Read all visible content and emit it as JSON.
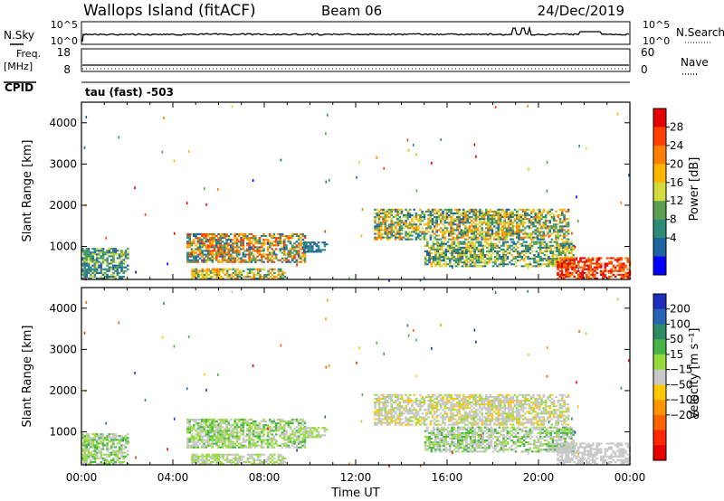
{
  "header": {
    "title": "Wallops Island (fitACF)",
    "beam": "Beam 06",
    "date": "24/Dec/2019"
  },
  "top_panels": {
    "nsky_label": "N.Sky",
    "nsky_ticks": [
      "10^5",
      "10^0"
    ],
    "nsearch_label": "N.Search",
    "nsearch_ticks": [
      "10^5",
      "10^0"
    ],
    "freq_label": "Freq.",
    "freq_unit": "[MHz]",
    "freq_ticks": [
      "18",
      "8"
    ],
    "nave_label": "Nave",
    "nave_ticks": [
      "60",
      "0"
    ],
    "cpid_label": "CPID",
    "cpid_text": "tau (fast) -503"
  },
  "chart_data": [
    {
      "type": "heatmap",
      "name": "power",
      "ylabel": "Slant Range [km]",
      "xlim": [
        0,
        24
      ],
      "ylim": [
        200,
        4500
      ],
      "yticks": [
        1000,
        2000,
        3000,
        4000
      ],
      "colorbar_label": "Power [dB]",
      "colorbar_ticks": [
        "28",
        "24",
        "20",
        "16",
        "12",
        "8",
        "4"
      ],
      "colorbar_colors": [
        "#e60000",
        "#ff4000",
        "#ff8000",
        "#ffb400",
        "#d2dc3c",
        "#5aa050",
        "#2d8c78",
        "#1e64a0",
        "#0000ff"
      ],
      "regions": [
        {
          "t0": 4.6,
          "t1": 9.8,
          "r0": 600,
          "r1": 1300,
          "palette": [
            2,
            1,
            3,
            5,
            6,
            7
          ]
        },
        {
          "t0": 4.8,
          "t1": 8.9,
          "r0": 200,
          "r1": 450,
          "palette": [
            2,
            3,
            4,
            6
          ]
        },
        {
          "t0": 9.7,
          "t1": 10.7,
          "r0": 850,
          "r1": 1100,
          "palette": [
            6,
            7
          ]
        },
        {
          "t0": 12.8,
          "t1": 21.3,
          "r0": 1150,
          "r1": 1900,
          "palette": [
            3,
            2,
            4,
            5,
            6,
            7
          ]
        },
        {
          "t0": 15.0,
          "t1": 21.5,
          "r0": 500,
          "r1": 1100,
          "palette": [
            4,
            5,
            6,
            7,
            3
          ]
        },
        {
          "t0": 20.8,
          "t1": 24.0,
          "r0": 200,
          "r1": 700,
          "palette": [
            0,
            1,
            2
          ]
        },
        {
          "t0": 0.0,
          "t1": 2.0,
          "r0": 200,
          "r1": 950,
          "palette": [
            6,
            7,
            5,
            4
          ]
        }
      ]
    },
    {
      "type": "heatmap",
      "name": "velocity",
      "xlabel": "Time UT",
      "ylabel": "Slant Range [km]",
      "xlim": [
        0,
        24
      ],
      "ylim": [
        200,
        4500
      ],
      "xticks": [
        "00:00",
        "04:00",
        "08:00",
        "12:00",
        "16:00",
        "20:00",
        "00:00"
      ],
      "yticks": [
        1000,
        2000,
        3000,
        4000
      ],
      "colorbar_label": "Velocity [m s⁻¹]",
      "colorbar_ticks": [
        "200",
        "100",
        "50",
        "15",
        "−15",
        "−50",
        "−100",
        "−200"
      ],
      "colorbar_colors": [
        "#1e2dbe",
        "#2864b4",
        "#2d8c64",
        "#46b446",
        "#96dc3c",
        "#c8c8c8",
        "#ffc800",
        "#ff9600",
        "#ff6400",
        "#ff2800",
        "#e60000"
      ],
      "regions": [
        {
          "t0": 4.6,
          "t1": 9.8,
          "r0": 600,
          "r1": 1300,
          "palette": [
            4,
            3,
            4,
            5,
            5
          ]
        },
        {
          "t0": 4.8,
          "t1": 8.9,
          "r0": 200,
          "r1": 450,
          "palette": [
            4,
            5
          ]
        },
        {
          "t0": 9.7,
          "t1": 10.7,
          "r0": 850,
          "r1": 1100,
          "palette": [
            5,
            4
          ]
        },
        {
          "t0": 12.8,
          "t1": 21.3,
          "r0": 1150,
          "r1": 1900,
          "palette": [
            5,
            5,
            5,
            4,
            6
          ]
        },
        {
          "t0": 15.0,
          "t1": 21.5,
          "r0": 500,
          "r1": 1100,
          "palette": [
            5,
            5,
            4,
            3
          ]
        },
        {
          "t0": 20.8,
          "t1": 24.0,
          "r0": 200,
          "r1": 700,
          "palette": [
            5,
            5,
            5
          ]
        },
        {
          "t0": 0.0,
          "t1": 2.0,
          "r0": 200,
          "r1": 950,
          "palette": [
            4,
            5,
            3
          ]
        }
      ]
    }
  ]
}
